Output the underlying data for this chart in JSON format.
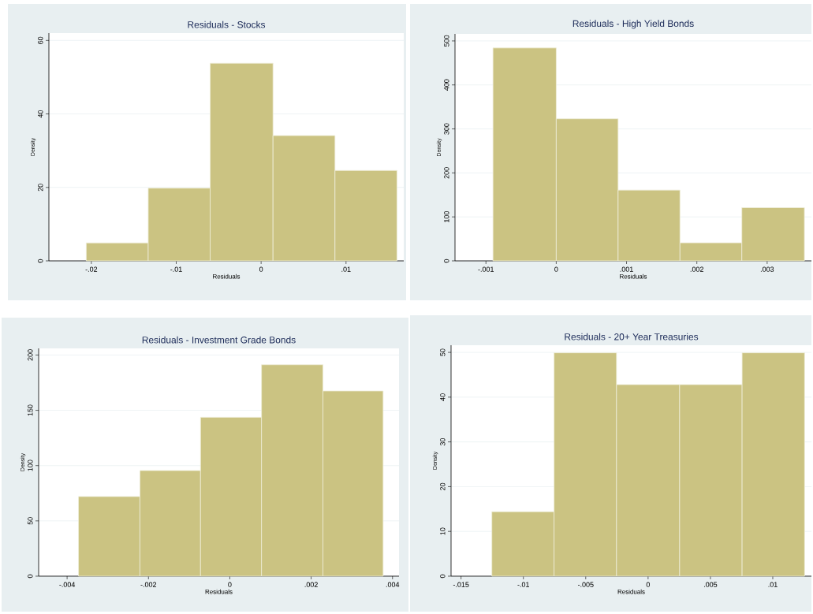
{
  "chart_data": [
    {
      "type": "histogram",
      "title": "Residuals - Stocks",
      "xlabel": "Residuals",
      "ylabel": "Density",
      "color": "#cbc382",
      "grid": "y",
      "bins": [
        -0.0206,
        -0.0133,
        -0.006,
        0.0014,
        0.0087,
        0.016
      ],
      "values": [
        4.9,
        19.8,
        53.8,
        34.1,
        24.6
      ],
      "xlim": [
        -0.025,
        0.0168
      ],
      "ylim": [
        0,
        62
      ],
      "xticks": [
        {
          "value": -0.02,
          "label": "-.02"
        },
        {
          "value": -0.01,
          "label": "-.01"
        },
        0,
        {
          "value": 0.01,
          "label": ".01"
        }
      ],
      "yticks": [
        0,
        20,
        40,
        60
      ]
    },
    {
      "type": "histogram",
      "title": "Residuals - High Yield Bonds",
      "xlabel": "Residuals",
      "ylabel": "Density",
      "color": "#cbc382",
      "grid": "y",
      "bins": [
        -0.0009,
        0,
        0.00088,
        0.00176,
        0.00264,
        0.00353
      ],
      "values": [
        484,
        323,
        161,
        41,
        121
      ],
      "xlim": [
        -0.00144,
        0.00363
      ],
      "ylim": [
        0,
        516
      ],
      "xticks": [
        {
          "value": -0.001,
          "label": "-.001"
        },
        0,
        {
          "value": 0.001,
          "label": ".001"
        },
        {
          "value": 0.002,
          "label": ".002"
        },
        {
          "value": 0.003,
          "label": ".003"
        }
      ],
      "yticks": [
        0,
        100,
        200,
        300,
        400,
        500
      ]
    },
    {
      "type": "histogram",
      "title": "Residuals - Investment Grade Bonds",
      "xlabel": "Residuals",
      "ylabel": "Density",
      "color": "#cbc382",
      "grid": "y",
      "bins": [
        -0.00372,
        -0.00221,
        -0.00072,
        0.00078,
        0.00229,
        0.00377
      ],
      "values": [
        72,
        95.5,
        143.7,
        191.2,
        167.5
      ],
      "xlim": [
        -0.0047,
        0.00416
      ],
      "ylim": [
        0,
        206
      ],
      "xticks": [
        {
          "value": -0.004,
          "label": "-.004"
        },
        {
          "value": -0.002,
          "label": "-.002"
        },
        0,
        {
          "value": 0.002,
          "label": ".002"
        },
        {
          "value": 0.004,
          "label": ".004"
        }
      ],
      "yticks": [
        0,
        50,
        100,
        150,
        200
      ]
    },
    {
      "type": "histogram",
      "title": "Residuals - 20+ Year Treasuries",
      "xlabel": "Residuals",
      "ylabel": "Density",
      "color": "#cbc382",
      "grid": "y",
      "bins": [
        -0.01253,
        -0.00754,
        -0.00253,
        0.00253,
        0.00754,
        0.01255
      ],
      "values": [
        14.4,
        49.9,
        42.8,
        42.8,
        49.9
      ],
      "xlim": [
        -0.0158,
        0.0131
      ],
      "ylim": [
        0,
        51.6
      ],
      "xticks": [
        {
          "value": -0.015,
          "label": "-.015"
        },
        {
          "value": -0.01,
          "label": "-.01"
        },
        {
          "value": -0.005,
          "label": "-.005"
        },
        0,
        {
          "value": 0.005,
          "label": ".005"
        },
        {
          "value": 0.01,
          "label": ".01"
        }
      ],
      "yticks": [
        0,
        10,
        20,
        30,
        40,
        50
      ]
    }
  ]
}
